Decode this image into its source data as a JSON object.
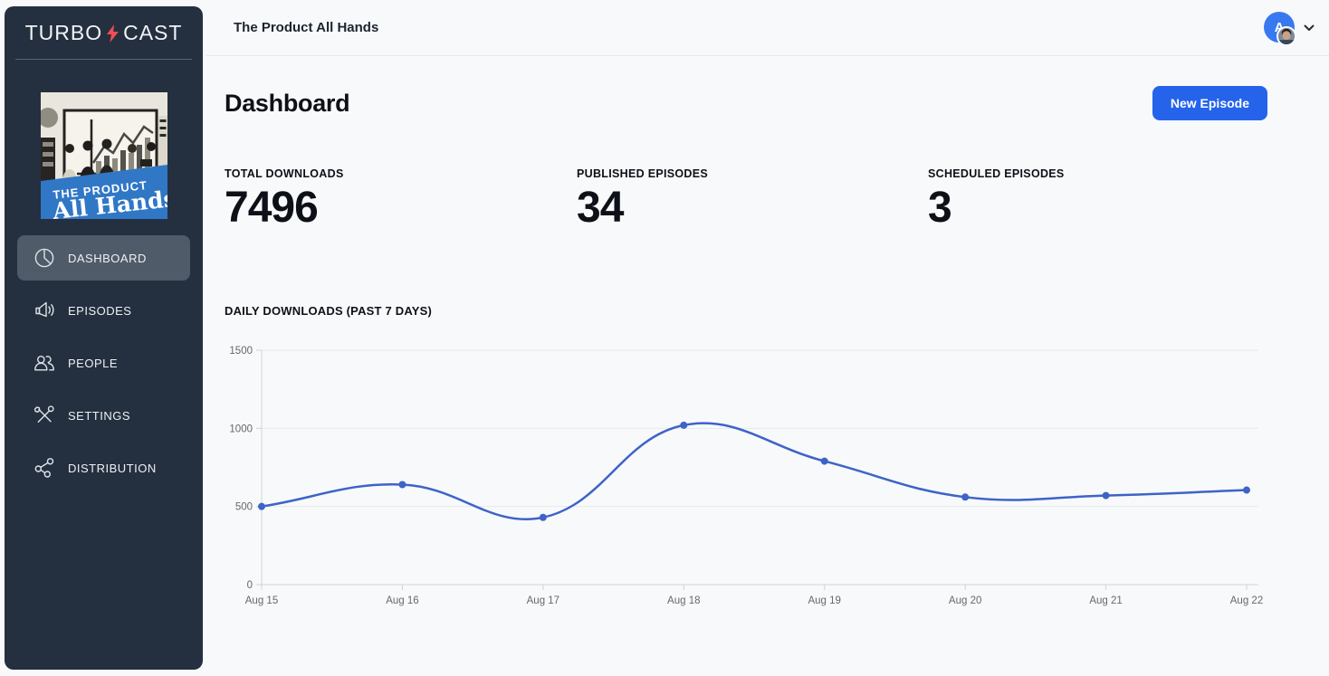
{
  "sidebar": {
    "logo": {
      "part1": "TURBO",
      "part2": "CAST",
      "bolt_icon": "lightning-bolt-icon",
      "bolt_color": "#ee4f55"
    },
    "artwork": {
      "line1": "THE PRODUCT",
      "line2": "All Hands",
      "banner_color": "#3077c6"
    },
    "nav": [
      {
        "label": "DASHBOARD",
        "icon": "pie-chart-icon",
        "active": true
      },
      {
        "label": "EPISODES",
        "icon": "megaphone-icon",
        "active": false
      },
      {
        "label": "PEOPLE",
        "icon": "people-icon",
        "active": false
      },
      {
        "label": "SETTINGS",
        "icon": "tools-icon",
        "active": false
      },
      {
        "label": "DISTRIBUTION",
        "icon": "share-icon",
        "active": false
      }
    ]
  },
  "topbar": {
    "title": "The Product All Hands",
    "avatar_letter": "A",
    "chevron_icon": "chevron-down-icon"
  },
  "page": {
    "title": "Dashboard",
    "new_episode_button": "New Episode",
    "stats": [
      {
        "label": "TOTAL DOWNLOADS",
        "value": "7496"
      },
      {
        "label": "PUBLISHED EPISODES",
        "value": "34"
      },
      {
        "label": "SCHEDULED EPISODES",
        "value": "3"
      }
    ]
  },
  "chart_data": {
    "type": "line",
    "title": "DAILY DOWNLOADS (PAST 7 DAYS)",
    "categories": [
      "Aug 15",
      "Aug 16",
      "Aug 17",
      "Aug 18",
      "Aug 19",
      "Aug 20",
      "Aug 21",
      "Aug 22"
    ],
    "values": [
      500,
      640,
      430,
      1020,
      790,
      560,
      570,
      605
    ],
    "xlabel": "",
    "ylabel": "",
    "ylim": [
      0,
      1500
    ],
    "yticks": [
      0,
      500,
      1000,
      1500
    ],
    "grid": true,
    "legend": false,
    "line_color": "#3e63c8",
    "point_color": "#3e63c8",
    "tick_color": "#68686b",
    "grid_color": "#e9e9ea",
    "axis_color": "#d2d3d6"
  },
  "colors": {
    "sidebar_bg": "#24303f",
    "sidebar_active_bg": "#4f5b68",
    "accent_blue": "#2563eb",
    "avatar_blue": "#3879f0",
    "page_bg": "#f8f9fb"
  }
}
